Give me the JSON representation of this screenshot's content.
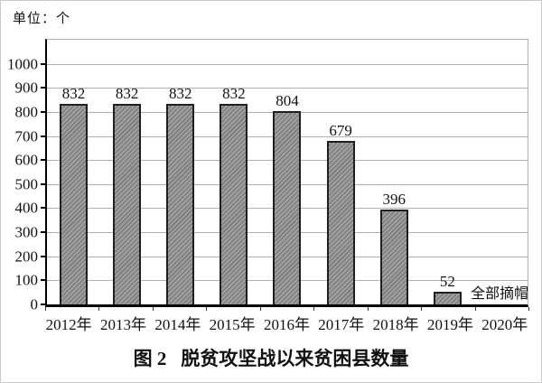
{
  "unit_label": "单位：个",
  "caption": {
    "figure_label": "图 2",
    "text": "脱贫攻坚战以来贫困县数量"
  },
  "chart_data": {
    "type": "bar",
    "title": "图 2 脱贫攻坚战以来贫困县数量",
    "unit": "个",
    "categories": [
      "2012年",
      "2013年",
      "2014年",
      "2015年",
      "2016年",
      "2017年",
      "2018年",
      "2019年",
      "2020年"
    ],
    "values": [
      832,
      832,
      832,
      832,
      804,
      679,
      396,
      52,
      0
    ],
    "bar_labels": [
      "832",
      "832",
      "832",
      "832",
      "804",
      "679",
      "396",
      "52",
      ""
    ],
    "annotation": {
      "text": "全部摘帽",
      "category": "2020年"
    },
    "xlabel": "",
    "ylabel": "",
    "ylim": [
      0,
      1100
    ],
    "yticks": [
      0,
      100,
      200,
      300,
      400,
      500,
      600,
      700,
      800,
      900,
      1000
    ],
    "grid": true,
    "legend": false,
    "colors": {
      "bar_fill": "#a0a0a0",
      "bar_hatch": "#7b7b7b",
      "bar_border": "#1f1f1f",
      "gridline": "#b0b0b0",
      "axis": "#000000",
      "tick": "#000000",
      "text": "#111111",
      "frame_border": "#c9c9c9",
      "background": "#ffffff"
    }
  }
}
